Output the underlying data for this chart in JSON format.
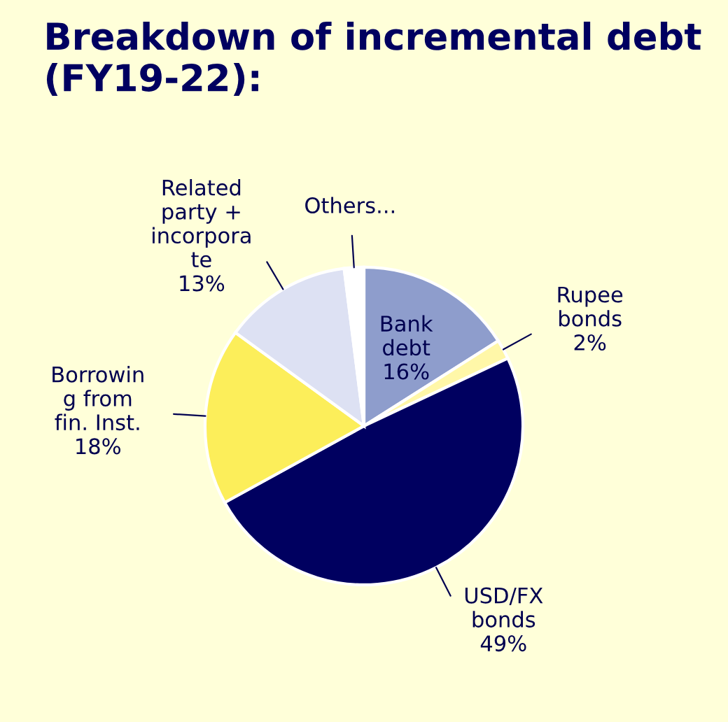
{
  "chart_data": {
    "type": "pie",
    "title": "Breakdown of incremental debt\n(FY19-22):",
    "categories": [
      "Bank\ndebt",
      "Rupee\nbonds",
      "USD/FX\nbonds",
      "Borrowin\ng from\nfin. Inst.",
      "Related\nparty +\nincorpora\nte",
      "Others..."
    ],
    "values": [
      16,
      2,
      49,
      18,
      13,
      2
    ],
    "value_labels": [
      "16%",
      "2%",
      "49%",
      "18%",
      "13%",
      null
    ],
    "colors": [
      "#8e9dcc",
      "#fff7a8",
      "#000060",
      "#fcee5a",
      "#dde1f3",
      "#ffffff"
    ],
    "legend": false
  }
}
